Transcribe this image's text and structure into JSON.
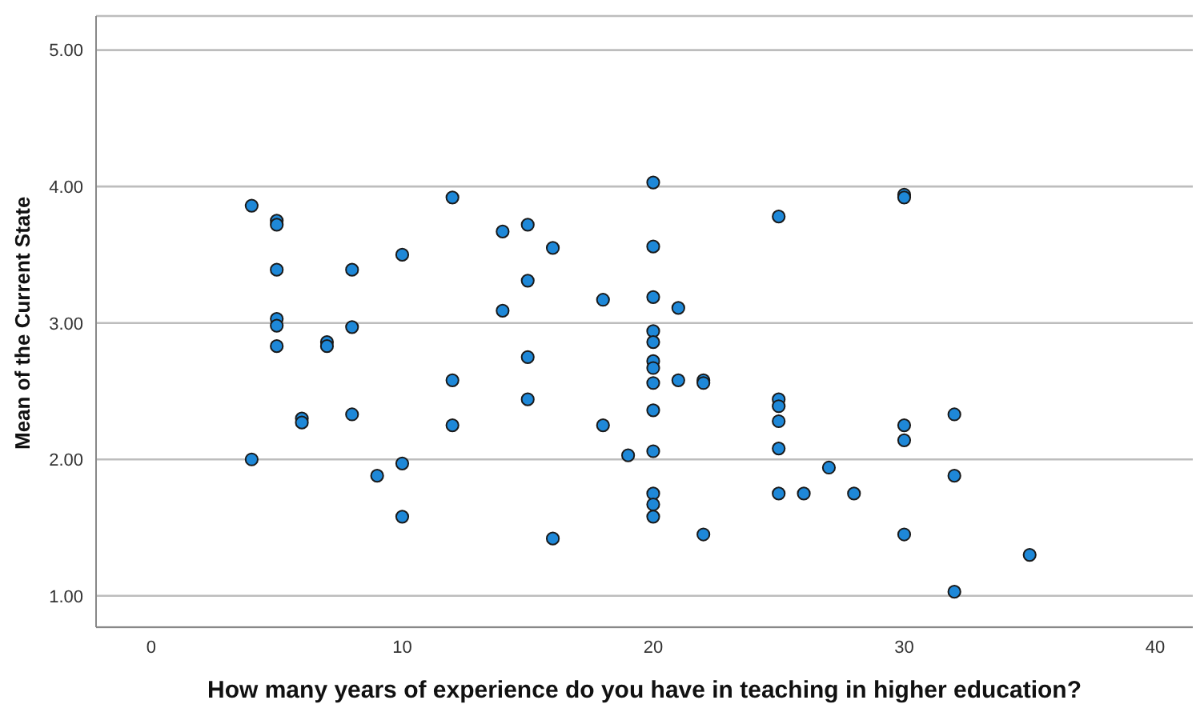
{
  "chart_data": {
    "type": "scatter",
    "xlabel": "How many years of experience do you have in teaching in higher education?",
    "ylabel": "Mean of the Current State",
    "xlim": [
      -2.2,
      41.5
    ],
    "xticks": [
      0,
      10,
      20,
      30,
      40
    ],
    "ylim": [
      0.77,
      5.25
    ],
    "yticks": [
      {
        "value": 1,
        "label": "1.00"
      },
      {
        "value": 2,
        "label": "2.00"
      },
      {
        "value": 3,
        "label": "3.00"
      },
      {
        "value": 4,
        "label": "4.00"
      },
      {
        "value": 5,
        "label": "5.00"
      }
    ],
    "grid": "y",
    "marker": "circle",
    "series": [
      {
        "color": "#1e88d8",
        "x": [
          4,
          4,
          5,
          5,
          5,
          5,
          5,
          5,
          6,
          6,
          7,
          7,
          8,
          8,
          8,
          9,
          10,
          10,
          10,
          12,
          12,
          12,
          14,
          14,
          15,
          15,
          15,
          15,
          16,
          16,
          18,
          18,
          19,
          20,
          20,
          20,
          20,
          20,
          20,
          20,
          20,
          20,
          20,
          20,
          20,
          20,
          21,
          21,
          22,
          22,
          22,
          25,
          25,
          25,
          25,
          25,
          25,
          26,
          27,
          28,
          30,
          30,
          30,
          30,
          30,
          32,
          32,
          32,
          35
        ],
        "values": [
          3.86,
          2.0,
          3.75,
          3.72,
          3.39,
          3.03,
          2.98,
          2.83,
          2.3,
          2.27,
          2.86,
          2.83,
          3.39,
          2.97,
          2.33,
          1.88,
          3.5,
          1.97,
          1.58,
          3.92,
          2.58,
          2.25,
          3.67,
          3.09,
          3.72,
          3.31,
          2.75,
          2.44,
          3.55,
          1.42,
          3.17,
          2.25,
          2.03,
          4.03,
          3.56,
          3.19,
          2.94,
          2.86,
          2.72,
          2.67,
          2.56,
          2.36,
          2.06,
          1.75,
          1.67,
          1.58,
          3.11,
          2.58,
          2.58,
          2.56,
          1.45,
          3.78,
          2.44,
          2.39,
          2.28,
          2.08,
          1.75,
          1.75,
          1.94,
          1.75,
          3.94,
          3.92,
          2.25,
          2.14,
          1.45,
          2.33,
          1.88,
          1.03,
          1.3
        ]
      }
    ]
  }
}
